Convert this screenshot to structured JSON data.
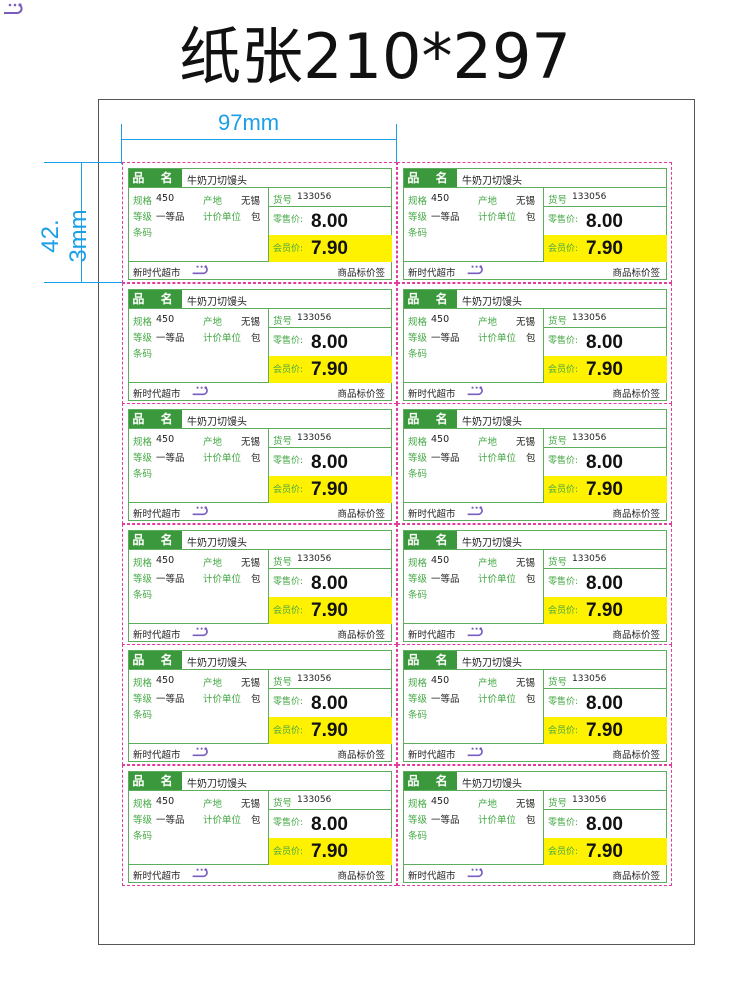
{
  "title": "纸张210*297",
  "dimensions": {
    "width": "97mm",
    "height": "42. 3mm"
  },
  "colors": {
    "green": "#3c983c",
    "border": "#5cae5c",
    "yellow": "#fff200",
    "cut_line": "#e43c9c",
    "dimension": "#1a9fe8"
  },
  "label_fields": {
    "name_label": "品 名",
    "spec_label": "规格",
    "origin_label": "产地",
    "grade_label": "等级",
    "unit_label": "计价单位",
    "barcode_label": "条码",
    "item_no_label": "货号",
    "retail_label": "零售价:",
    "member_label": "会员价:",
    "store": "新时代超市",
    "tag_type": "商品标价签",
    "logo_icon": "store-logo-icon"
  },
  "labels": [
    {
      "name": "牛奶刀切馒头",
      "spec": "450",
      "origin": "无锡",
      "grade": "一等品",
      "unit": "包",
      "item_no": "133056",
      "retail": "8.00",
      "member": "7.90"
    },
    {
      "name": "牛奶刀切馒头",
      "spec": "450",
      "origin": "无锡",
      "grade": "一等品",
      "unit": "包",
      "item_no": "133056",
      "retail": "8.00",
      "member": "7.90"
    },
    {
      "name": "牛奶刀切馒头",
      "spec": "450",
      "origin": "无锡",
      "grade": "一等品",
      "unit": "包",
      "item_no": "133056",
      "retail": "8.00",
      "member": "7.90"
    },
    {
      "name": "牛奶刀切馒头",
      "spec": "450",
      "origin": "无锡",
      "grade": "一等品",
      "unit": "包",
      "item_no": "133056",
      "retail": "8.00",
      "member": "7.90"
    },
    {
      "name": "牛奶刀切馒头",
      "spec": "450",
      "origin": "无锡",
      "grade": "一等品",
      "unit": "包",
      "item_no": "133056",
      "retail": "8.00",
      "member": "7.90"
    },
    {
      "name": "牛奶刀切馒头",
      "spec": "450",
      "origin": "无锡",
      "grade": "一等品",
      "unit": "包",
      "item_no": "133056",
      "retail": "8.00",
      "member": "7.90"
    },
    {
      "name": "牛奶刀切馒头",
      "spec": "450",
      "origin": "无锡",
      "grade": "一等品",
      "unit": "包",
      "item_no": "133056",
      "retail": "8.00",
      "member": "7.90"
    },
    {
      "name": "牛奶刀切馒头",
      "spec": "450",
      "origin": "无锡",
      "grade": "一等品",
      "unit": "包",
      "item_no": "133056",
      "retail": "8.00",
      "member": "7.90"
    },
    {
      "name": "牛奶刀切馒头",
      "spec": "450",
      "origin": "无锡",
      "grade": "一等品",
      "unit": "包",
      "item_no": "133056",
      "retail": "8.00",
      "member": "7.90"
    },
    {
      "name": "牛奶刀切馒头",
      "spec": "450",
      "origin": "无锡",
      "grade": "一等品",
      "unit": "包",
      "item_no": "133056",
      "retail": "8.00",
      "member": "7.90"
    },
    {
      "name": "牛奶刀切馒头",
      "spec": "450",
      "origin": "无锡",
      "grade": "一等品",
      "unit": "包",
      "item_no": "133056",
      "retail": "8.00",
      "member": "7.90"
    },
    {
      "name": "牛奶刀切馒头",
      "spec": "450",
      "origin": "无锡",
      "grade": "一等品",
      "unit": "包",
      "item_no": "133056",
      "retail": "8.00",
      "member": "7.90"
    }
  ]
}
